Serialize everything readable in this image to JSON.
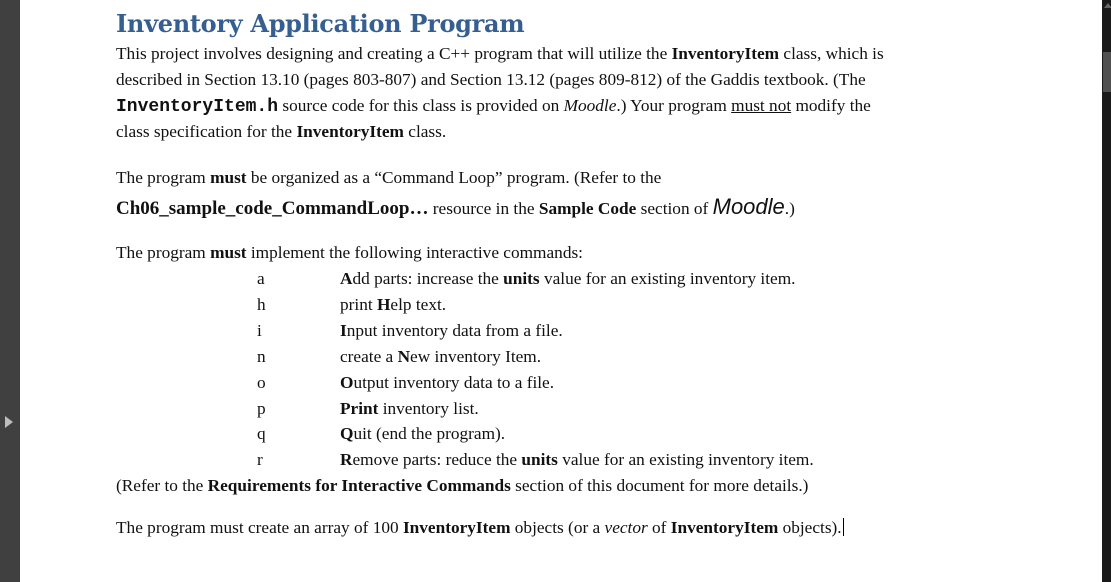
{
  "title": "Inventory Application Program",
  "paragraphs": {
    "p1": [
      [
        {
          "t": "This project involves designing and creating a C++ program that will utilize the "
        },
        {
          "t": "InventoryItem",
          "s": "b"
        },
        {
          "t": " class, which is"
        }
      ],
      [
        {
          "t": "described in Section 13.10 (pages 803-807) and Section 13.12 (pages 809-812) of the Gaddis textbook.   (The"
        }
      ],
      [
        {
          "t": "InventoryItem.h",
          "s": "m"
        },
        {
          "t": " source code for this class is provided on "
        },
        {
          "t": "Moodle",
          "s": "i"
        },
        {
          "t": ".) Your program "
        },
        {
          "t": "must not",
          "s": "u"
        },
        {
          "t": " modify the"
        }
      ],
      [
        {
          "t": "class specification for the "
        },
        {
          "t": "InventoryItem",
          "s": "b"
        },
        {
          "t": " class."
        }
      ]
    ],
    "p2": [
      [
        {
          "t": "The program "
        },
        {
          "t": "must",
          "s": "b"
        },
        {
          "t": " be organized as a “Command Loop” program.  (Refer to the"
        }
      ],
      [
        {
          "t": "Ch06_sample_code_CommandLoop…",
          "s": "bl"
        },
        {
          "t": " resource in the "
        },
        {
          "t": "Sample Code",
          "s": "b"
        },
        {
          "t": " section of "
        },
        {
          "t": "Moodle",
          "s": "big"
        },
        {
          "t": ".)"
        }
      ]
    ],
    "p3": [
      [
        {
          "t": "The program "
        },
        {
          "t": "must",
          "s": "b"
        },
        {
          "t": " implement the following interactive commands:"
        }
      ]
    ],
    "p4": [
      [
        {
          "t": "(Refer to the "
        },
        {
          "t": "Requirements for Interactive Commands",
          "s": "b"
        },
        {
          "t": " section of this document for more details.)"
        }
      ]
    ],
    "p5": [
      [
        {
          "t": "The program must create an array of 100 "
        },
        {
          "t": "InventoryItem",
          "s": "b"
        },
        {
          "t": " objects (or a "
        },
        {
          "t": "vector",
          "s": "i"
        },
        {
          "t": " of "
        },
        {
          "t": "InventoryItem",
          "s": "b"
        },
        {
          "t": " objects)."
        }
      ]
    ]
  },
  "commands": [
    {
      "key": "a",
      "desc": [
        {
          "t": "A",
          "s": "b"
        },
        {
          "t": "dd parts:  increase the "
        },
        {
          "t": "units",
          "s": "b"
        },
        {
          "t": " value for an existing inventory item."
        }
      ]
    },
    {
      "key": "h",
      "desc": [
        {
          "t": "print "
        },
        {
          "t": "H",
          "s": "b"
        },
        {
          "t": "elp text."
        }
      ]
    },
    {
      "key": "i",
      "desc": [
        {
          "t": "I",
          "s": "b"
        },
        {
          "t": "nput inventory data from a file."
        }
      ]
    },
    {
      "key": "n",
      "desc": [
        {
          "t": "create a "
        },
        {
          "t": "N",
          "s": "b"
        },
        {
          "t": "ew inventory Item."
        }
      ]
    },
    {
      "key": "o",
      "desc": [
        {
          "t": "O",
          "s": "b"
        },
        {
          "t": "utput inventory data to a file."
        }
      ]
    },
    {
      "key": "p",
      "desc": [
        {
          "t": "Print",
          "s": "b"
        },
        {
          "t": " inventory list."
        }
      ]
    },
    {
      "key": "q",
      "desc": [
        {
          "t": "Q",
          "s": "b"
        },
        {
          "t": "uit (end the program)."
        }
      ]
    },
    {
      "key": "r",
      "desc": [
        {
          "t": " R",
          "s": "b"
        },
        {
          "t": "emove parts: reduce the "
        },
        {
          "t": "units",
          "s": "b"
        },
        {
          "t": " value for an existing inventory item."
        }
      ]
    }
  ],
  "colors": {
    "heading": "#365f91",
    "sidebar": "#404040",
    "scrollbar": "#1a1a1a"
  },
  "icons": {
    "sidebar_toggle": "triangle-right-icon"
  }
}
